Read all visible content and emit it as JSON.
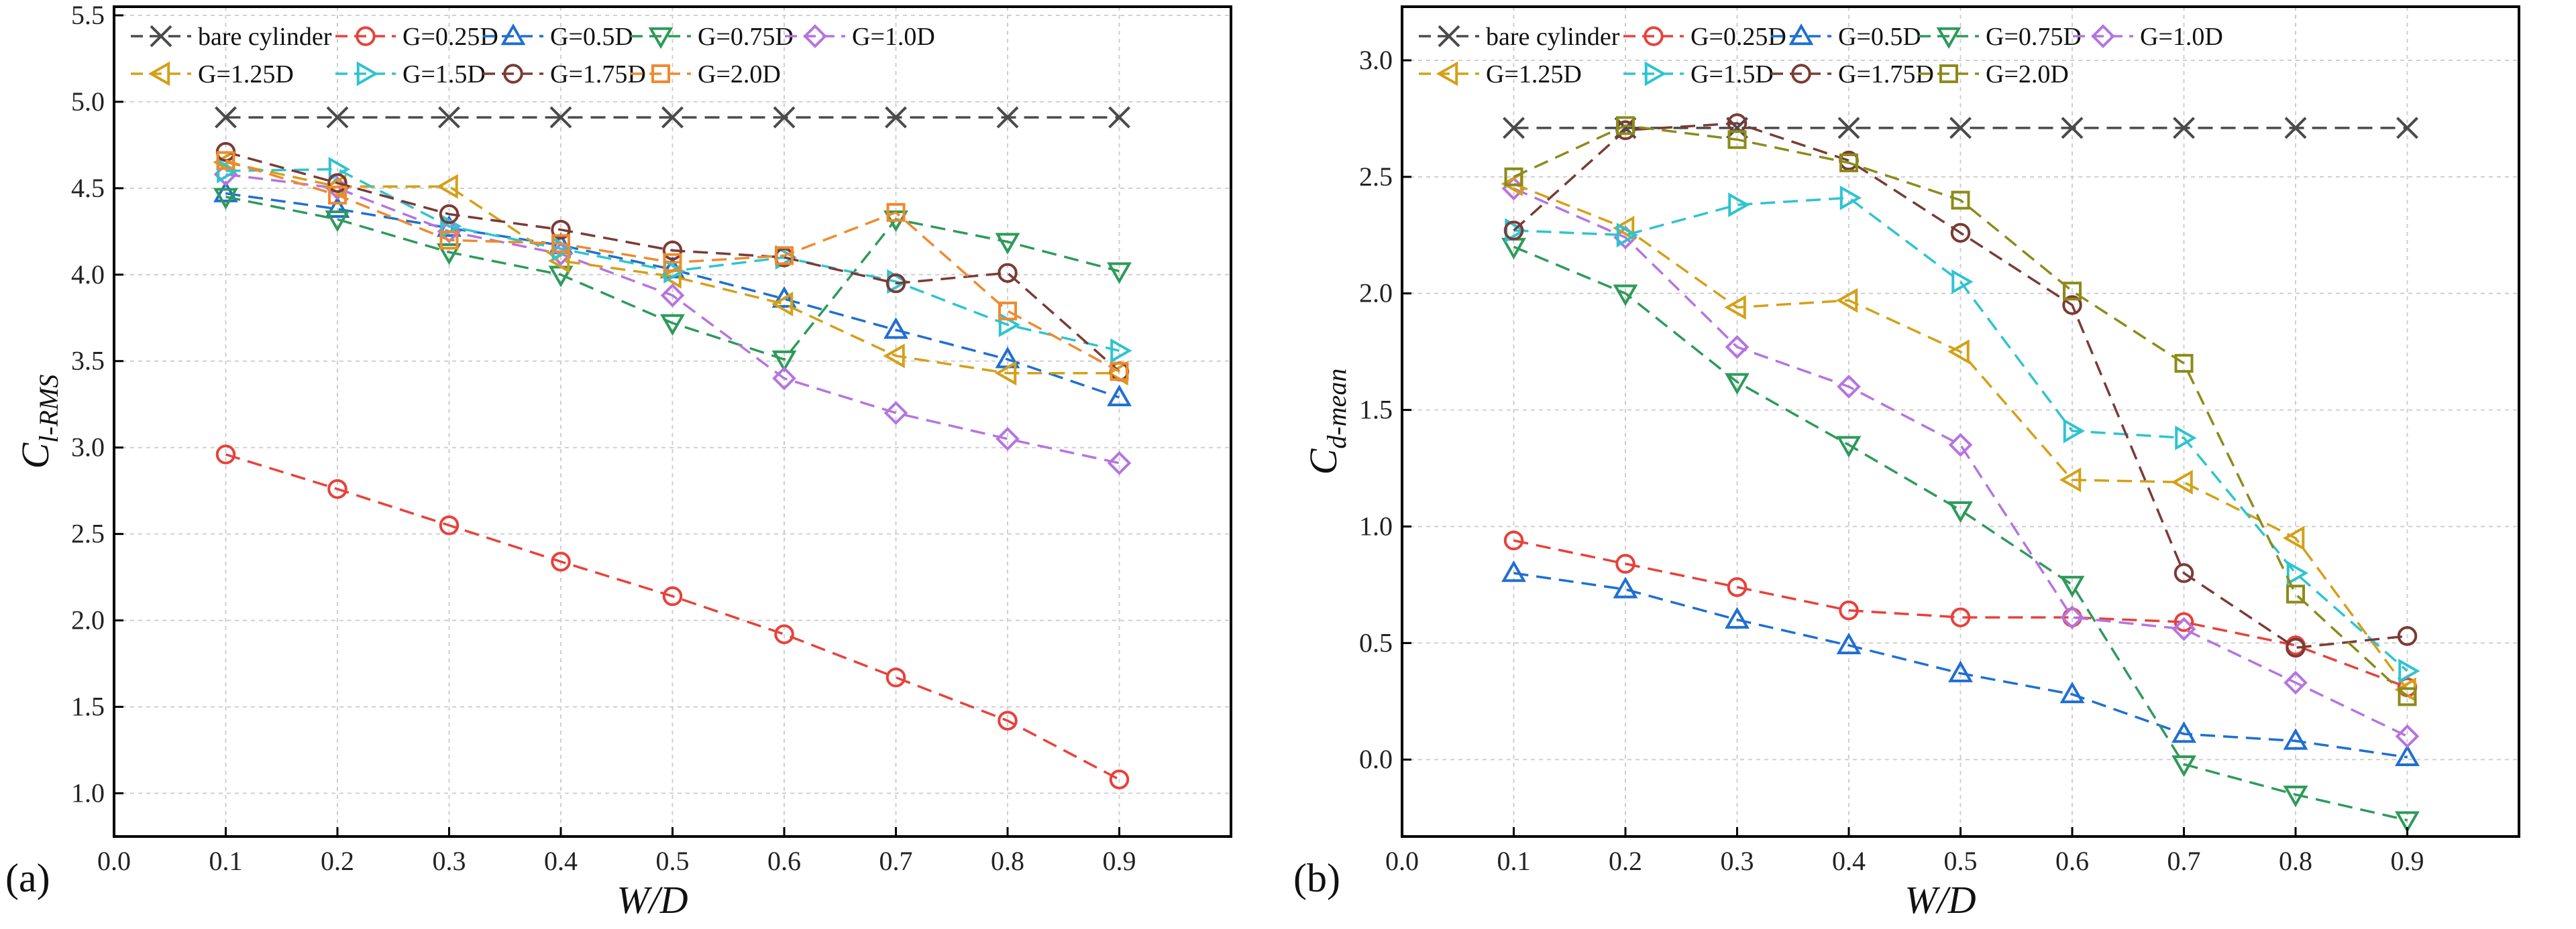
{
  "chart_data": [
    {
      "type": "line",
      "panel_label": "(a)",
      "xlabel": "W/D",
      "ylabel_main": "C",
      "ylabel_sub": "l-RMS",
      "xlim": [
        0.0,
        1.0
      ],
      "ylim": [
        0.75,
        5.55
      ],
      "xticks": [
        0.0,
        0.1,
        0.2,
        0.3,
        0.4,
        0.5,
        0.6,
        0.7,
        0.8,
        0.9
      ],
      "xtick_labels": [
        "0.0",
        "0.1",
        "0.2",
        "0.3",
        "0.4",
        "0.5",
        "0.6",
        "0.7",
        "0.8",
        "0.9"
      ],
      "yticks": [
        1.0,
        1.5,
        2.0,
        2.5,
        3.0,
        3.5,
        4.0,
        4.5,
        5.0,
        5.5
      ],
      "ytick_labels": [
        "1.0",
        "1.5",
        "2.0",
        "2.5",
        "3.0",
        "3.5",
        "4.0",
        "4.5",
        "5.0",
        "5.5"
      ],
      "grid": true,
      "legend_position": "top",
      "x": [
        0.1,
        0.2,
        0.3,
        0.4,
        0.5,
        0.6,
        0.7,
        0.8,
        0.9
      ],
      "series": [
        {
          "name": "bare cylinder",
          "color": "#4a4a4a",
          "marker": "x",
          "values": [
            4.91,
            4.91,
            4.91,
            4.91,
            4.91,
            4.91,
            4.91,
            4.91,
            4.91
          ]
        },
        {
          "name": "G=0.25D",
          "color": "#e8413a",
          "marker": "circle",
          "values": [
            2.96,
            2.76,
            2.55,
            2.34,
            2.14,
            1.92,
            1.67,
            1.42,
            1.08
          ]
        },
        {
          "name": "G=0.5D",
          "color": "#1f6fd1",
          "marker": "triangle-up",
          "values": [
            4.47,
            4.38,
            4.27,
            4.17,
            4.03,
            3.86,
            3.68,
            3.51,
            3.29
          ]
        },
        {
          "name": "G=0.75D",
          "color": "#2e9a5a",
          "marker": "triangle-down",
          "values": [
            4.45,
            4.32,
            4.13,
            4.0,
            3.72,
            3.51,
            4.32,
            4.19,
            4.02
          ]
        },
        {
          "name": "G=1.0D",
          "color": "#b574e0",
          "marker": "diamond",
          "values": [
            4.58,
            4.5,
            4.25,
            4.12,
            3.88,
            3.4,
            3.2,
            3.05,
            2.91
          ]
        },
        {
          "name": "G=1.25D",
          "color": "#d4a017",
          "marker": "triangle-left",
          "values": [
            4.65,
            4.51,
            4.51,
            4.08,
            3.99,
            3.83,
            3.53,
            3.43,
            3.43
          ]
        },
        {
          "name": "G=1.5D",
          "color": "#2ec4cf",
          "marker": "triangle-right",
          "values": [
            4.6,
            4.61,
            4.28,
            4.15,
            4.02,
            4.1,
            3.96,
            3.71,
            3.56
          ]
        },
        {
          "name": "G=1.75D",
          "color": "#7a3b36",
          "marker": "circle",
          "values": [
            4.71,
            4.53,
            4.35,
            4.26,
            4.14,
            4.1,
            3.95,
            4.01,
            3.44
          ]
        },
        {
          "name": "G=2.0D",
          "color": "#ef8a2e",
          "marker": "square",
          "values": [
            4.66,
            4.46,
            4.2,
            4.18,
            4.07,
            4.11,
            4.36,
            3.79,
            3.44
          ]
        }
      ]
    },
    {
      "type": "line",
      "panel_label": "(b)",
      "xlabel": "W/D",
      "ylabel_main": "C",
      "ylabel_sub": "d-mean",
      "xlim": [
        0.0,
        1.0
      ],
      "ylim": [
        -0.33,
        3.23
      ],
      "xticks": [
        0.0,
        0.1,
        0.2,
        0.3,
        0.4,
        0.5,
        0.6,
        0.7,
        0.8,
        0.9
      ],
      "xtick_labels": [
        "0.0",
        "0.1",
        "0.2",
        "0.3",
        "0.4",
        "0.5",
        "0.6",
        "0.7",
        "0.8",
        "0.9"
      ],
      "yticks": [
        0.0,
        0.5,
        1.0,
        1.5,
        2.0,
        2.5,
        3.0
      ],
      "ytick_labels": [
        "0.0",
        "0.5",
        "1.0",
        "1.5",
        "2.0",
        "2.5",
        "3.0"
      ],
      "grid": true,
      "legend_position": "top",
      "x": [
        0.1,
        0.2,
        0.3,
        0.4,
        0.5,
        0.6,
        0.7,
        0.8,
        0.9
      ],
      "series": [
        {
          "name": "bare cylinder",
          "color": "#4a4a4a",
          "marker": "x",
          "values": [
            2.71,
            2.71,
            2.71,
            2.71,
            2.71,
            2.71,
            2.71,
            2.71,
            2.71
          ]
        },
        {
          "name": "G=0.25D",
          "color": "#e8413a",
          "marker": "circle",
          "values": [
            0.94,
            0.84,
            0.74,
            0.64,
            0.61,
            0.61,
            0.59,
            0.49,
            0.31
          ]
        },
        {
          "name": "G=0.5D",
          "color": "#1f6fd1",
          "marker": "triangle-up",
          "values": [
            0.8,
            0.73,
            0.6,
            0.49,
            0.37,
            0.28,
            0.11,
            0.08,
            0.01
          ]
        },
        {
          "name": "G=0.75D",
          "color": "#2e9a5a",
          "marker": "triangle-down",
          "values": [
            2.2,
            2.0,
            1.62,
            1.35,
            1.07,
            0.75,
            -0.02,
            -0.15,
            -0.26
          ]
        },
        {
          "name": "G=1.0D",
          "color": "#b574e0",
          "marker": "diamond",
          "values": [
            2.45,
            2.24,
            1.77,
            1.6,
            1.35,
            0.61,
            0.56,
            0.33,
            0.1
          ]
        },
        {
          "name": "G=1.25D",
          "color": "#d4a017",
          "marker": "triangle-left",
          "values": [
            2.47,
            2.28,
            1.94,
            1.97,
            1.75,
            1.2,
            1.19,
            0.95,
            0.3
          ]
        },
        {
          "name": "G=1.5D",
          "color": "#2ec4cf",
          "marker": "triangle-right",
          "values": [
            2.27,
            2.25,
            2.38,
            2.41,
            2.05,
            1.41,
            1.38,
            0.8,
            0.38
          ]
        },
        {
          "name": "G=1.75D",
          "color": "#7a3b36",
          "marker": "circle",
          "values": [
            2.27,
            2.7,
            2.73,
            2.57,
            2.26,
            1.95,
            0.8,
            0.48,
            0.53
          ]
        },
        {
          "name": "G=2.0D",
          "color": "#8b8b1a",
          "marker": "square",
          "values": [
            2.5,
            2.72,
            2.66,
            2.56,
            2.4,
            2.01,
            1.7,
            0.71,
            0.27
          ]
        }
      ]
    }
  ]
}
